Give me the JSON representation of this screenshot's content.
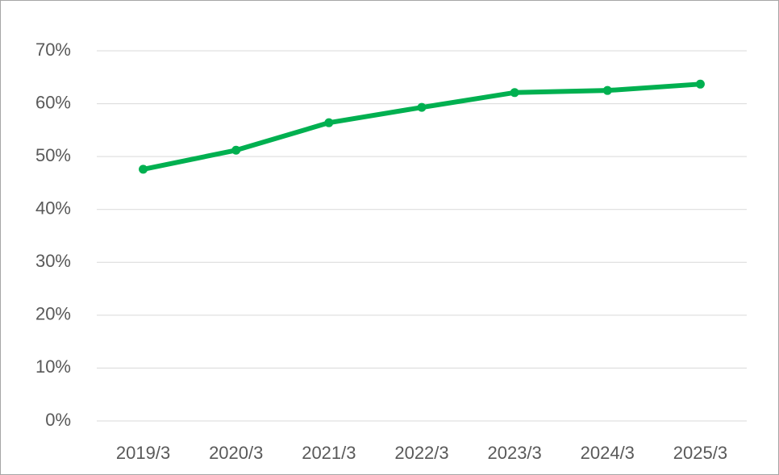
{
  "chart_data": {
    "type": "line",
    "categories": [
      "2019/3",
      "2020/3",
      "2021/3",
      "2022/3",
      "2023/3",
      "2024/3",
      "2025/3"
    ],
    "series": [
      {
        "color": "#00b050",
        "values": [
          47.6,
          51.2,
          56.4,
          59.3,
          62.1,
          62.5,
          63.7
        ]
      }
    ],
    "ylim": [
      0,
      70
    ],
    "yticks": [
      {
        "value": 0,
        "label": "0%"
      },
      {
        "value": 10,
        "label": "10%"
      },
      {
        "value": 20,
        "label": "20%"
      },
      {
        "value": 30,
        "label": "30%"
      },
      {
        "value": 40,
        "label": "40%"
      },
      {
        "value": 50,
        "label": "50%"
      },
      {
        "value": 60,
        "label": "60%"
      },
      {
        "value": 70,
        "label": "70%"
      }
    ],
    "grid": true
  }
}
